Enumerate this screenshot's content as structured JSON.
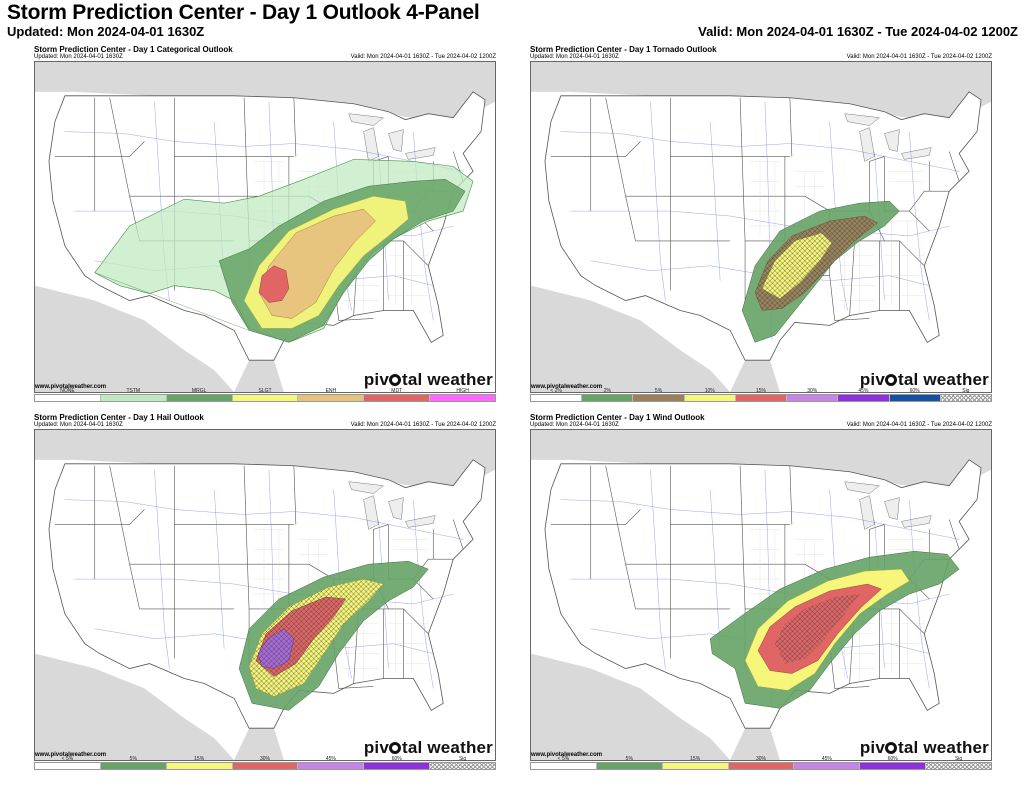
{
  "header": {
    "title": "Storm Prediction Center - Day 1 Outlook 4-Panel",
    "updated": "Updated: Mon 2024-04-01 1630Z",
    "valid": "Valid: Mon 2024-04-01 1630Z - Tue 2024-04-02 1200Z"
  },
  "panels": [
    {
      "title": "Storm Prediction Center - Day 1 Categorical Outlook",
      "updated": "Updated: Mon 2024-04-01 1630Z",
      "valid": "Valid: Mon 2024-04-01 1630Z - Tue 2024-04-02 1200Z",
      "website": "www.pivotalweather.com",
      "legend": [
        {
          "label": "NONE",
          "color": "#ffffff"
        },
        {
          "label": "TSTM",
          "color": "#c1e9c1"
        },
        {
          "label": "MRGL",
          "color": "#66a366"
        },
        {
          "label": "SLGT",
          "color": "#f6f67b"
        },
        {
          "label": "ENH",
          "color": "#e6c27e"
        },
        {
          "label": "MDT",
          "color": "#e06666"
        },
        {
          "label": "HIGH",
          "color": "#ff66ff"
        }
      ]
    },
    {
      "title": "Storm Prediction Center - Day 1 Tornado Outlook",
      "updated": "Updated: Mon 2024-04-01 1630Z",
      "valid": "Valid: Mon 2024-04-01 1630Z - Tue 2024-04-02 1200Z",
      "website": "www.pivotalweather.com",
      "legend": [
        {
          "label": "< 2%",
          "color": "#ffffff"
        },
        {
          "label": "2%",
          "color": "#66a366"
        },
        {
          "label": "5%",
          "color": "#9d7f5b"
        },
        {
          "label": "10%",
          "color": "#f6f67b"
        },
        {
          "label": "15%",
          "color": "#e06666"
        },
        {
          "label": "30%",
          "color": "#c584e8"
        },
        {
          "label": "45%",
          "color": "#8f2fe0"
        },
        {
          "label": "60%",
          "color": "#174fa3"
        },
        {
          "label": "Sig",
          "color": "hatch"
        }
      ]
    },
    {
      "title": "Storm Prediction Center - Day 1 Hail Outlook",
      "updated": "Updated: Mon 2024-04-01 1630Z",
      "valid": "Valid: Mon 2024-04-01 1630Z - Tue 2024-04-02 1200Z",
      "website": "www.pivotalweather.com",
      "legend": [
        {
          "label": "< 5%",
          "color": "#ffffff"
        },
        {
          "label": "5%",
          "color": "#66a366"
        },
        {
          "label": "15%",
          "color": "#f6f67b"
        },
        {
          "label": "30%",
          "color": "#e06666"
        },
        {
          "label": "45%",
          "color": "#c584e8"
        },
        {
          "label": "60%",
          "color": "#8f2fe0"
        },
        {
          "label": "Sig",
          "color": "hatch"
        }
      ]
    },
    {
      "title": "Storm Prediction Center - Day 1 Wind Outlook",
      "updated": "Updated: Mon 2024-04-01 1630Z",
      "valid": "Valid: Mon 2024-04-01 1630Z - Tue 2024-04-02 1200Z",
      "website": "www.pivotalweather.com",
      "legend": [
        {
          "label": "< 5%",
          "color": "#ffffff"
        },
        {
          "label": "5%",
          "color": "#66a366"
        },
        {
          "label": "15%",
          "color": "#f6f67b"
        },
        {
          "label": "30%",
          "color": "#e06666"
        },
        {
          "label": "45%",
          "color": "#c584e8"
        },
        {
          "label": "60%",
          "color": "#8f2fe0"
        },
        {
          "label": "Sig",
          "color": "hatch"
        }
      ]
    }
  ],
  "brand": {
    "before": "piv",
    "after": "tal weather"
  },
  "colors": {
    "land_outside": "#d9d9d9",
    "water": "#ffffff",
    "borders": "#555555",
    "counties": "#c8c8c8",
    "roads": "#7a86e6"
  }
}
